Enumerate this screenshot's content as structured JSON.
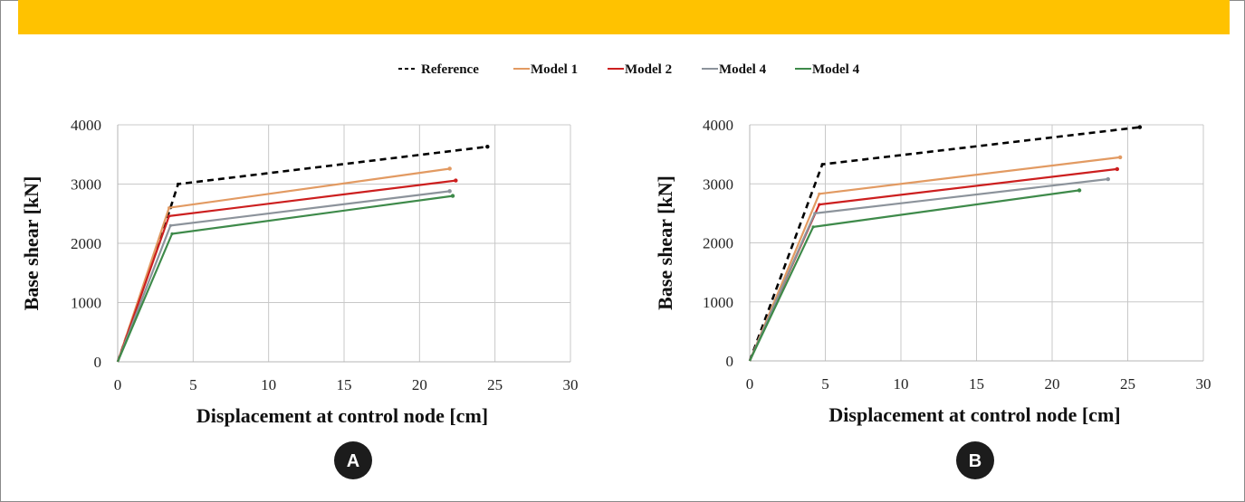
{
  "colors": {
    "banner": "#ffc200",
    "badge": "#1c1c1c",
    "grid": "#c8c8c8",
    "series": [
      "#000000",
      "#e29a62",
      "#cc1f1f",
      "#8c939b",
      "#3e8a4a"
    ]
  },
  "legend": {
    "placement": "top-center",
    "entries": [
      "Reference",
      "Model 1",
      "Model 2",
      "Model 4",
      "Model 4"
    ]
  },
  "chart_data": [
    {
      "type": "line",
      "panel_label": "A",
      "xlabel": "Displacement at control node [cm]",
      "ylabel": "Base shear [kN]",
      "xlim": [
        0,
        30
      ],
      "ylim": [
        0,
        4000
      ],
      "xticks": [
        0,
        5,
        10,
        15,
        20,
        25,
        30
      ],
      "yticks": [
        0,
        1000,
        2000,
        3000,
        4000
      ],
      "grid": true,
      "series": [
        {
          "name": "Reference",
          "color": "#000000",
          "dash": true,
          "points": [
            [
              0,
              0
            ],
            [
              3.5,
              2600
            ],
            [
              4.0,
              3000
            ],
            [
              24.5,
              3630
            ]
          ]
        },
        {
          "name": "Model 1",
          "color": "#e29a62",
          "dash": false,
          "points": [
            [
              0,
              0
            ],
            [
              3.4,
              2600
            ],
            [
              22.0,
              3260
            ]
          ]
        },
        {
          "name": "Model 2",
          "color": "#cc1f1f",
          "dash": false,
          "points": [
            [
              0,
              0
            ],
            [
              3.4,
              2460
            ],
            [
              22.4,
              3060
            ]
          ]
        },
        {
          "name": "Model 4",
          "color": "#8c939b",
          "dash": false,
          "points": [
            [
              0,
              0
            ],
            [
              3.5,
              2300
            ],
            [
              22.0,
              2880
            ]
          ]
        },
        {
          "name": "Model 4",
          "color": "#3e8a4a",
          "dash": false,
          "points": [
            [
              0,
              0
            ],
            [
              3.6,
              2160
            ],
            [
              22.2,
              2800
            ]
          ]
        }
      ]
    },
    {
      "type": "line",
      "panel_label": "B",
      "xlabel": "Displacement at control node [cm]",
      "ylabel": "Base shear [kN]",
      "xlim": [
        0,
        30
      ],
      "ylim": [
        0,
        4000
      ],
      "xticks": [
        0,
        5,
        10,
        15,
        20,
        25,
        30
      ],
      "yticks": [
        0,
        1000,
        2000,
        3000,
        4000
      ],
      "grid": true,
      "series": [
        {
          "name": "Reference",
          "color": "#000000",
          "dash": true,
          "points": [
            [
              0,
              0
            ],
            [
              4.8,
              3330
            ],
            [
              25.8,
              3960
            ]
          ]
        },
        {
          "name": "Model 1",
          "color": "#e29a62",
          "dash": false,
          "points": [
            [
              0,
              0
            ],
            [
              4.6,
              2830
            ],
            [
              24.5,
              3450
            ]
          ]
        },
        {
          "name": "Model 2",
          "color": "#cc1f1f",
          "dash": false,
          "points": [
            [
              0,
              0
            ],
            [
              4.6,
              2650
            ],
            [
              24.3,
              3250
            ]
          ]
        },
        {
          "name": "Model 4",
          "color": "#8c939b",
          "dash": false,
          "points": [
            [
              0,
              0
            ],
            [
              4.3,
              2500
            ],
            [
              23.7,
              3080
            ]
          ]
        },
        {
          "name": "Model 4",
          "color": "#3e8a4a",
          "dash": false,
          "points": [
            [
              0,
              0
            ],
            [
              4.2,
              2270
            ],
            [
              21.8,
              2890
            ]
          ]
        }
      ]
    }
  ]
}
